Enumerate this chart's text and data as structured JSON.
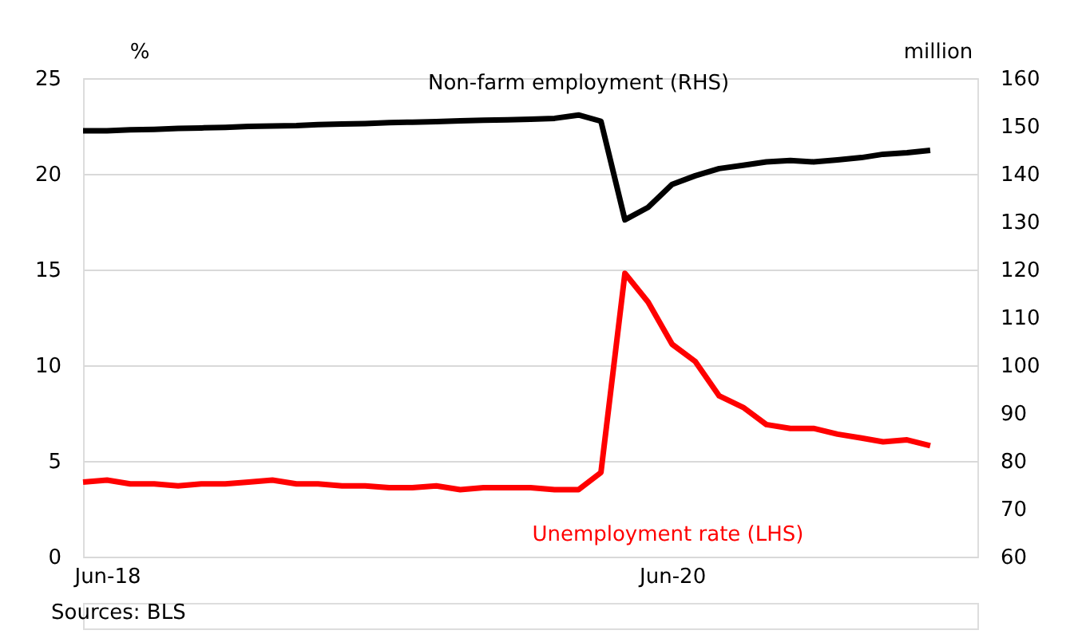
{
  "chart_data": {
    "type": "line",
    "ylabel": "%",
    "y2label": "million",
    "x": [
      "2018-05",
      "2018-06",
      "2018-07",
      "2018-08",
      "2018-09",
      "2018-10",
      "2018-11",
      "2018-12",
      "2019-01",
      "2019-02",
      "2019-03",
      "2019-04",
      "2019-05",
      "2019-06",
      "2019-07",
      "2019-08",
      "2019-09",
      "2019-10",
      "2019-11",
      "2019-12",
      "2020-01",
      "2020-02",
      "2020-03",
      "2020-04",
      "2020-05",
      "2020-06",
      "2020-07",
      "2020-08",
      "2020-09",
      "2020-10",
      "2020-11",
      "2020-12",
      "2021-01",
      "2021-02",
      "2021-03",
      "2021-04",
      "2021-05"
    ],
    "series": [
      {
        "name": "Non-farm employment (RHS)",
        "color": "#000000",
        "axis": "y2",
        "values": [
          149.0,
          149.0,
          149.2,
          149.3,
          149.5,
          149.6,
          149.7,
          149.9,
          150.0,
          150.1,
          150.3,
          150.4,
          150.5,
          150.7,
          150.8,
          150.9,
          151.1,
          151.2,
          151.3,
          151.4,
          151.6,
          152.3,
          151.0,
          130.4,
          133.0,
          137.8,
          139.6,
          141.1,
          141.8,
          142.5,
          142.8,
          142.5,
          142.9,
          143.4,
          144.1,
          144.4,
          144.9
        ]
      },
      {
        "name": "Unemployment rate (LHS)",
        "color": "#ff0000",
        "values": [
          3.9,
          4.0,
          3.8,
          3.8,
          3.7,
          3.8,
          3.8,
          3.9,
          4.0,
          3.8,
          3.8,
          3.7,
          3.7,
          3.6,
          3.6,
          3.7,
          3.5,
          3.6,
          3.6,
          3.6,
          3.5,
          3.5,
          4.4,
          14.8,
          13.3,
          11.1,
          10.2,
          8.4,
          7.8,
          6.9,
          6.7,
          6.7,
          6.4,
          6.2,
          6.0,
          6.1,
          5.8
        ]
      }
    ],
    "xlim": [
      "2018-05",
      "2021-07"
    ],
    "xticks": [
      {
        "value": "2018-06",
        "label": "Jun-18"
      },
      {
        "value": "2020-06",
        "label": "Jun-20"
      }
    ],
    "ylim": [
      0,
      25
    ],
    "yticks": [
      0,
      5,
      10,
      15,
      20,
      25
    ],
    "y2lim": [
      60,
      160
    ],
    "y2ticks": [
      60,
      70,
      80,
      90,
      100,
      110,
      120,
      130,
      140,
      150,
      160
    ],
    "grid": "y",
    "legend": false,
    "marker": "none",
    "line_style": "solid",
    "annotations": [
      "Sources: BLS"
    ]
  }
}
